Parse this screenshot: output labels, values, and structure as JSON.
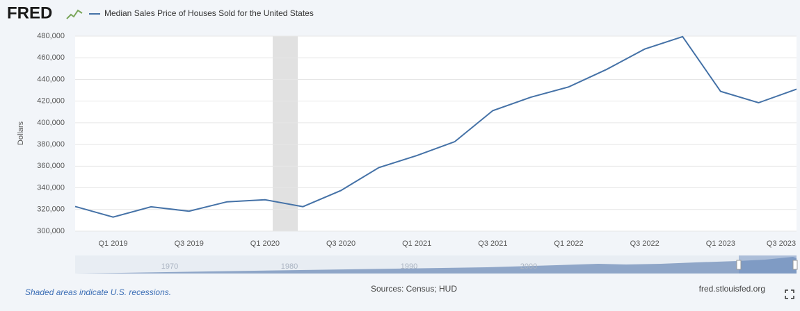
{
  "logo": "FRED",
  "chart_data": {
    "type": "line",
    "ylabel": "Dollars",
    "categories": [
      null,
      "Q1 2019",
      null,
      "Q3 2019",
      null,
      "Q1 2020",
      null,
      "Q3 2020",
      null,
      "Q1 2021",
      null,
      "Q3 2021",
      null,
      "Q1 2022",
      null,
      "Q3 2022",
      null,
      "Q1 2023",
      null,
      "Q3 2023"
    ],
    "series": [
      {
        "name": "Median Sales Price of Houses Sold for the United States",
        "color": "#4572a7",
        "values": [
          322800,
          313000,
          322500,
          318400,
          327100,
          329000,
          322600,
          337500,
          358700,
          369800,
          382600,
          411200,
          423600,
          433100,
          449300,
          468000,
          479500,
          429000,
          418500,
          431000
        ]
      }
    ],
    "ylim": [
      300000,
      480000
    ],
    "yticks": [
      {
        "value": 300000,
        "label": "300,000"
      },
      {
        "value": 320000,
        "label": "320,000"
      },
      {
        "value": 340000,
        "label": "340,000"
      },
      {
        "value": 360000,
        "label": "360,000"
      },
      {
        "value": 380000,
        "label": "380,000"
      },
      {
        "value": 400000,
        "label": "400,000"
      },
      {
        "value": 420000,
        "label": "420,000"
      },
      {
        "value": 440000,
        "label": "440,000"
      },
      {
        "value": 460000,
        "label": "460,000"
      },
      {
        "value": 480000,
        "label": "480,000"
      }
    ],
    "grid": true
  },
  "navigator": {
    "labels": [
      "1970",
      "1980",
      "1990",
      "2000"
    ]
  },
  "footer": {
    "note": "Shaded areas indicate U.S. recessions.",
    "sources": "Sources: Census; HUD",
    "site": "fred.stlouisfed.org"
  }
}
